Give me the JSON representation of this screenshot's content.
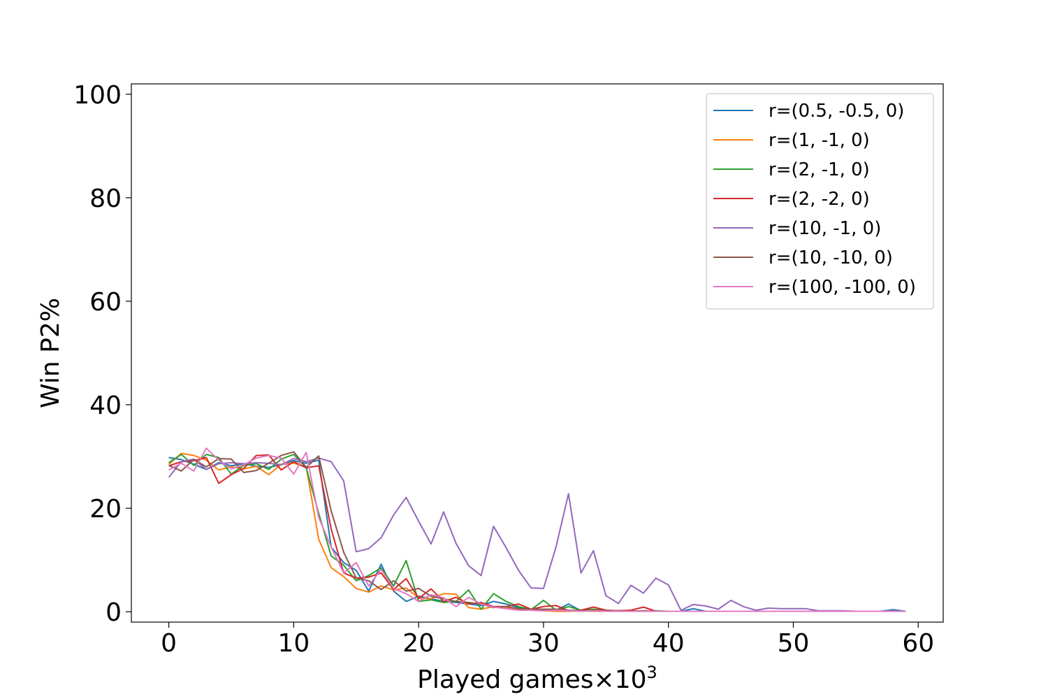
{
  "chart_data": {
    "type": "line",
    "title": "",
    "xlabel": "Played games×10",
    "xlabel_sup": "3",
    "ylabel": "Win P2%",
    "xlim": [
      -3,
      62
    ],
    "ylim": [
      -2,
      102
    ],
    "xticks": [
      0,
      10,
      20,
      30,
      40,
      50,
      60
    ],
    "yticks": [
      0,
      20,
      40,
      60,
      80,
      100
    ],
    "grid": false,
    "legend_position": "top-right",
    "x": [
      0,
      1,
      2,
      3,
      4,
      5,
      6,
      7,
      8,
      9,
      10,
      11,
      12,
      13,
      14,
      15,
      16,
      17,
      18,
      19,
      20,
      21,
      22,
      23,
      24,
      25,
      26,
      27,
      28,
      29,
      30,
      31,
      32,
      33,
      34,
      35,
      36,
      37,
      38,
      39,
      40,
      41,
      42,
      43,
      44,
      45,
      46,
      47,
      48,
      49,
      50,
      51,
      52,
      53,
      54,
      55,
      56,
      57,
      58,
      59
    ],
    "series": [
      {
        "name": "r=(0.5, -0.5, 0)",
        "color": "#1f77b4",
        "values": [
          29.8,
          29.4,
          28.5,
          27.5,
          28.8,
          28.2,
          28.6,
          28.1,
          27.9,
          28.4,
          29.2,
          28.7,
          29.3,
          12.5,
          9.5,
          8.0,
          4.0,
          9.2,
          4.0,
          2.0,
          3.0,
          2.5,
          2.0,
          1.8,
          1.5,
          1.2,
          2.0,
          1.5,
          0.8,
          0.5,
          0.4,
          0.3,
          1.5,
          0.2,
          0.2,
          0.1,
          0.2,
          0.2,
          0.1,
          0.1,
          0.1,
          0.1,
          0.6,
          0.1,
          0.1,
          0.1,
          0.1,
          0.1,
          0.1,
          0.1,
          0.1,
          0.1,
          0.1,
          0.1,
          0.1,
          0.1,
          0.1,
          0.1,
          0.4,
          0.1
        ]
      },
      {
        "name": "r=(1, -1, 0)",
        "color": "#ff7f0e",
        "values": [
          28.5,
          30.6,
          30.2,
          29.3,
          27.4,
          28.0,
          27.6,
          28.1,
          26.5,
          28.5,
          28.7,
          28.0,
          14.0,
          8.5,
          6.8,
          4.5,
          3.8,
          5.0,
          4.2,
          4.6,
          2.6,
          2.5,
          3.5,
          3.4,
          0.8,
          0.5,
          1.0,
          0.8,
          0.4,
          0.3,
          0.2,
          0.1,
          0.1,
          0.2,
          0.1,
          0.1,
          0.1,
          0.1,
          0.1,
          0.1,
          0.1,
          0.1,
          0.1,
          0.1,
          0.1,
          0.1,
          0.1,
          0.1,
          0.1,
          0.1,
          0.1,
          0.1,
          0.1,
          0.1,
          0.1,
          0.1,
          0.1,
          0.1,
          0.1,
          0.1
        ]
      },
      {
        "name": "r=(2, -1, 0)",
        "color": "#2ca02c",
        "values": [
          28.8,
          30.4,
          28.3,
          30.4,
          29.8,
          26.6,
          28.3,
          28.6,
          27.5,
          29.5,
          30.4,
          27.8,
          19.0,
          10.8,
          9.0,
          6.0,
          7.0,
          8.5,
          5.0,
          9.9,
          2.0,
          2.3,
          1.8,
          2.0,
          4.2,
          0.5,
          3.5,
          2.0,
          1.0,
          0.4,
          2.2,
          0.3,
          1.0,
          0.3,
          0.5,
          0.2,
          0.2,
          0.2,
          0.1,
          0.2,
          0.1,
          0.1,
          0.1,
          0.1,
          0.1,
          0.1,
          0.1,
          0.1,
          0.1,
          0.1,
          0.1,
          0.1,
          0.1,
          0.1,
          0.1,
          0.1,
          0.1,
          0.1,
          0.1,
          0.1
        ]
      },
      {
        "name": "r=(2, -2, 0)",
        "color": "#d62728",
        "values": [
          28.2,
          29.0,
          29.2,
          29.8,
          24.8,
          26.5,
          27.7,
          30.2,
          30.3,
          27.4,
          29.0,
          27.8,
          28.2,
          16.0,
          7.5,
          6.5,
          6.7,
          7.5,
          4.3,
          6.4,
          2.6,
          4.4,
          2.0,
          2.8,
          1.5,
          1.8,
          1.0,
          1.0,
          1.5,
          0.5,
          1.0,
          1.2,
          0.2,
          0.3,
          0.9,
          0.3,
          0.2,
          0.3,
          0.9,
          0.1,
          0.1,
          0.1,
          0.1,
          0.1,
          0.1,
          0.1,
          0.1,
          0.1,
          0.1,
          0.1,
          0.1,
          0.1,
          0.1,
          0.1,
          0.1,
          0.1,
          0.1,
          0.1,
          0.1,
          0.1
        ]
      },
      {
        "name": "r=(10, -1, 0)",
        "color": "#9467bd",
        "values": [
          26.0,
          29.0,
          29.5,
          27.5,
          28.6,
          28.8,
          28.6,
          28.8,
          28.7,
          28.4,
          29.6,
          29.0,
          29.7,
          29.0,
          25.3,
          11.6,
          12.2,
          14.3,
          18.7,
          22.1,
          17.5,
          13.1,
          19.3,
          13.2,
          8.9,
          7.0,
          16.5,
          12.4,
          8.0,
          4.6,
          4.5,
          12.5,
          22.8,
          7.5,
          11.8,
          3.1,
          1.6,
          5.1,
          3.6,
          6.5,
          5.2,
          0.3,
          1.4,
          1.1,
          0.5,
          2.2,
          1.0,
          0.3,
          0.7,
          0.6,
          0.6,
          0.6,
          0.2,
          0.2,
          0.2,
          0.1,
          0.1,
          0.1,
          0.1,
          0.1
        ]
      },
      {
        "name": "r=(10, -10, 0)",
        "color": "#8c564b",
        "values": [
          28.3,
          27.2,
          29.4,
          28.0,
          29.6,
          29.5,
          26.9,
          27.3,
          28.7,
          30.2,
          30.9,
          27.9,
          30.1,
          19.5,
          11.5,
          6.5,
          6.0,
          4.3,
          6.0,
          4.0,
          4.5,
          3.0,
          2.5,
          2.0,
          1.8,
          1.5,
          0.8,
          1.0,
          0.6,
          0.5,
          0.5,
          0.5,
          0.3,
          0.2,
          0.3,
          0.2,
          0.2,
          0.1,
          0.2,
          0.1,
          0.1,
          0.1,
          0.1,
          0.1,
          0.1,
          0.1,
          0.1,
          0.1,
          0.1,
          0.1,
          0.1,
          0.1,
          0.1,
          0.1,
          0.1,
          0.1,
          0.1,
          0.1,
          0.1,
          0.1
        ]
      },
      {
        "name": "r=(100, -100, 0)",
        "color": "#e377c2",
        "values": [
          27.4,
          28.7,
          27.2,
          31.6,
          29.3,
          27.6,
          28.4,
          29.7,
          30.2,
          29.7,
          26.6,
          30.8,
          18.2,
          12.5,
          7.5,
          9.5,
          5.0,
          8.2,
          4.5,
          3.5,
          2.0,
          3.3,
          2.7,
          1.0,
          2.8,
          1.5,
          0.9,
          0.6,
          0.3,
          0.3,
          0.2,
          0.3,
          0.2,
          0.1,
          0.2,
          0.1,
          0.1,
          0.1,
          0.1,
          0.1,
          0.1,
          0.1,
          0.1,
          0.1,
          0.1,
          0.1,
          0.1,
          0.1,
          0.1,
          0.1,
          0.1,
          0.1,
          0.1,
          0.1,
          0.1,
          0.1,
          0.1,
          0.1,
          0.1,
          0.1
        ]
      }
    ]
  }
}
